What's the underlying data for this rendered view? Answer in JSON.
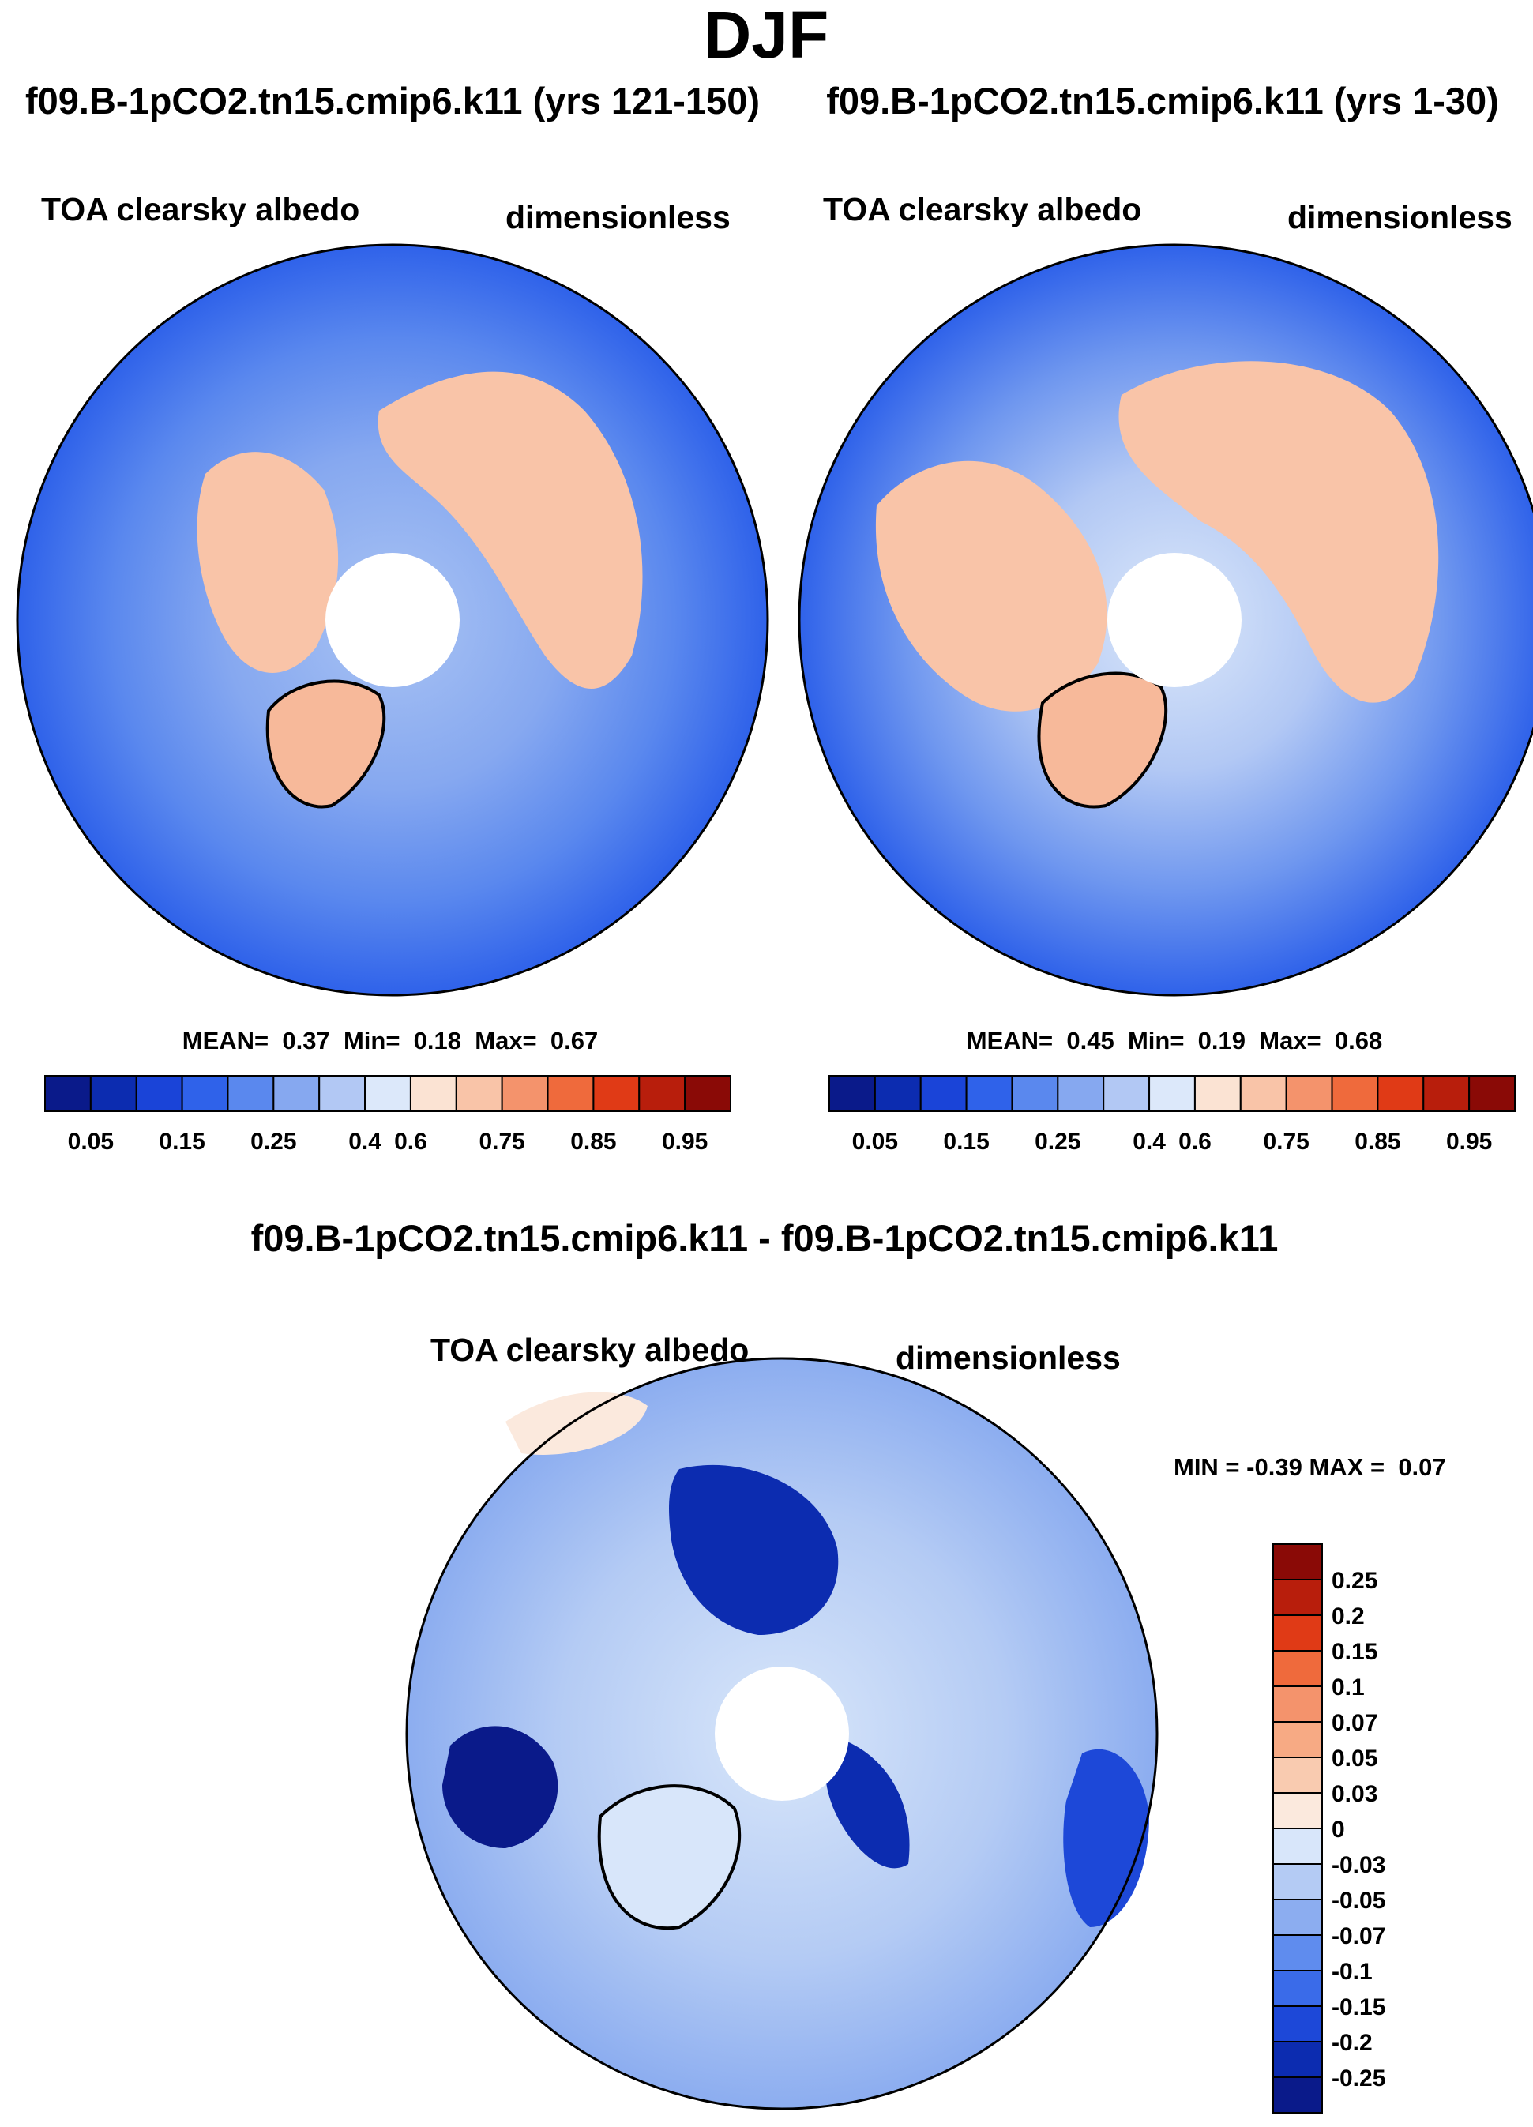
{
  "figure": {
    "title": "DJF",
    "colors": {
      "land_outline": "#000000",
      "ocean_mid": "#4d7ef2",
      "ocean_edge": "#2c64e8"
    }
  },
  "chart_data": [
    {
      "type": "heatmap",
      "projection": "north polar stereographic",
      "title": "f09.B-1pCO2.tn15.cmip6.k11 (yrs 121-150)",
      "variable": "TOA clearsky albedo",
      "units": "dimensionless",
      "stats": {
        "mean_label": "MEAN=",
        "mean": "0.37",
        "min_label": "Min=",
        "min": "0.18",
        "max_label": "Max=",
        "max": "0.67"
      },
      "colorbar": {
        "orientation": "horizontal",
        "tick_labels": [
          "0.05",
          "0.15",
          "0.25",
          "0.4",
          "0.6",
          "0.75",
          "0.85",
          "0.95"
        ],
        "colors": [
          "#0a1a8a",
          "#0c2cb0",
          "#1a44d8",
          "#2f62ea",
          "#5a88ee",
          "#86a8f0",
          "#b2c8f4",
          "#dce8fa",
          "#fbe3d3",
          "#f9c4a8",
          "#f4936c",
          "#ef6a3c",
          "#e03a16",
          "#b81e0c",
          "#8a0a06"
        ]
      }
    },
    {
      "type": "heatmap",
      "projection": "north polar stereographic",
      "title": "f09.B-1pCO2.tn15.cmip6.k11 (yrs 1-30)",
      "variable": "TOA clearsky albedo",
      "units": "dimensionless",
      "stats": {
        "mean_label": "MEAN=",
        "mean": "0.45",
        "min_label": "Min=",
        "min": "0.19",
        "max_label": "Max=",
        "max": "0.68"
      },
      "colorbar": {
        "orientation": "horizontal",
        "tick_labels": [
          "0.05",
          "0.15",
          "0.25",
          "0.4",
          "0.6",
          "0.75",
          "0.85",
          "0.95"
        ],
        "colors": [
          "#0a1a8a",
          "#0c2cb0",
          "#1a44d8",
          "#2f62ea",
          "#5a88ee",
          "#86a8f0",
          "#b2c8f4",
          "#dce8fa",
          "#fbe3d3",
          "#f9c4a8",
          "#f4936c",
          "#ef6a3c",
          "#e03a16",
          "#b81e0c",
          "#8a0a06"
        ]
      }
    },
    {
      "type": "heatmap",
      "projection": "north polar stereographic",
      "title": "f09.B-1pCO2.tn15.cmip6.k11 - f09.B-1pCO2.tn15.cmip6.k11",
      "variable": "TOA clearsky albedo",
      "units": "dimensionless",
      "stats": {
        "min_label": "MIN =",
        "min": "-0.39",
        "max_label": "MAX =",
        "max": "0.07"
      },
      "colorbar": {
        "orientation": "vertical",
        "tick_labels": [
          "0.25",
          "0.2",
          "0.15",
          "0.1",
          "0.07",
          "0.05",
          "0.03",
          "0",
          "-0.03",
          "-0.05",
          "-0.07",
          "-0.1",
          "-0.15",
          "-0.2",
          "-0.25"
        ],
        "colors": [
          "#8a0a06",
          "#b81e0c",
          "#e03a16",
          "#ef6a3c",
          "#f4936c",
          "#f7aa84",
          "#f9cbb0",
          "#fbe9dd",
          "#d8e6fa",
          "#b4cbf4",
          "#8cadf0",
          "#5f8cee",
          "#3a6be9",
          "#1d48d8",
          "#0c2cb0",
          "#0a1a8a"
        ]
      }
    }
  ]
}
